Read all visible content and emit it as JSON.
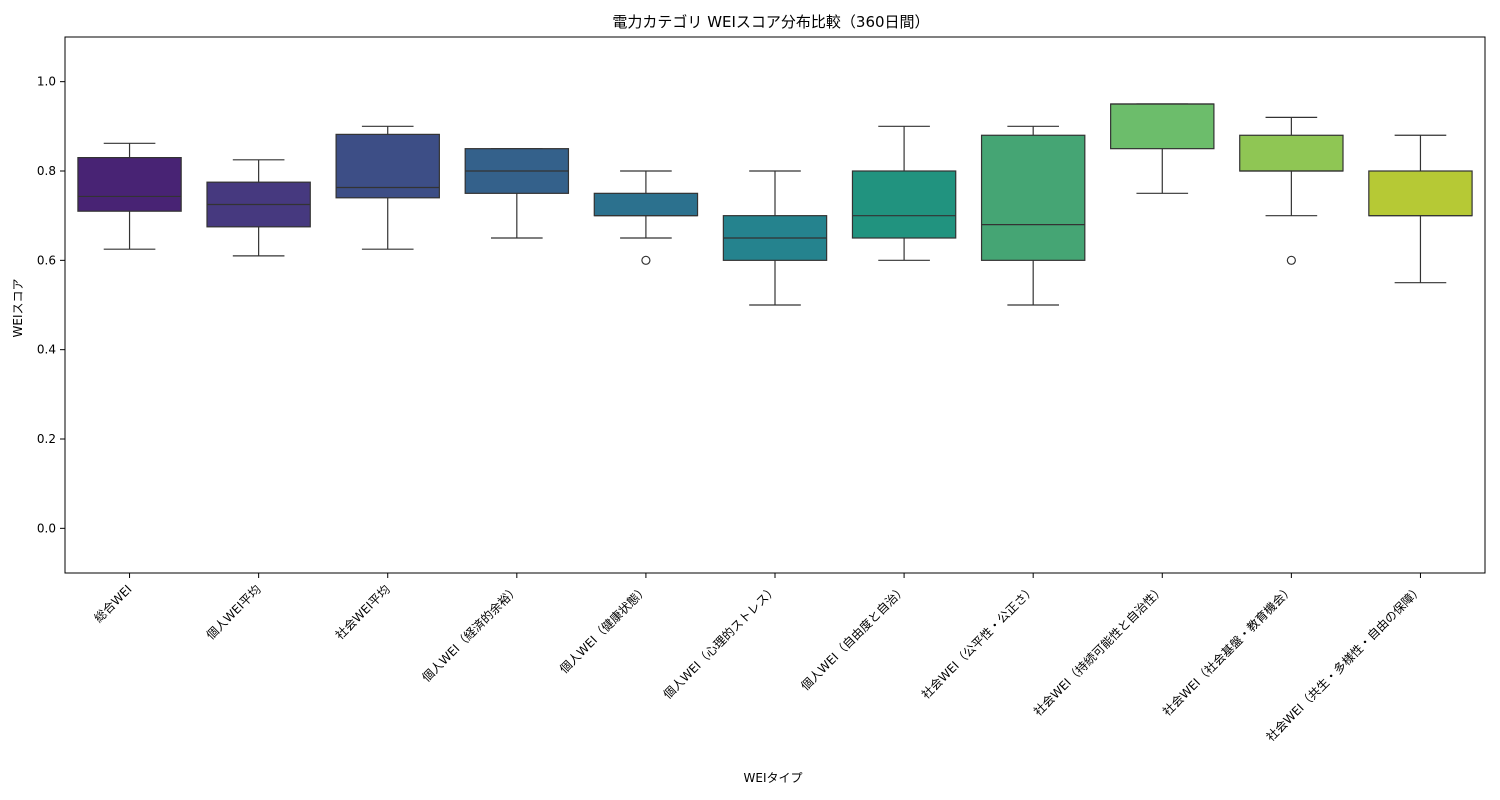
{
  "chart_data": {
    "type": "box",
    "title": "電力カテゴリ WEIスコア分布比較（360日間）",
    "xlabel": "WEIタイプ",
    "ylabel": "WEIスコア",
    "ylim": [
      -0.1,
      1.1
    ],
    "yticks": [
      0.0,
      0.2,
      0.4,
      0.6,
      0.8,
      1.0
    ],
    "ytick_labels": [
      "0.0",
      "0.2",
      "0.4",
      "0.6",
      "0.8",
      "1.0"
    ],
    "grid": false,
    "legend": "none",
    "categories": [
      "総合WEI",
      "個人WEI平均",
      "社会WEI平均",
      "個人WEI（経済的余裕）",
      "個人WEI（健康状態）",
      "個人WEI（心理的ストレス）",
      "個人WEI（自由度と自治）",
      "社会WEI（公平性・公正さ）",
      "社会WEI（持続可能性と自治性）",
      "社会WEI（社会基盤・教育機会）",
      "社会WEI（共生・多様性・自由の保障）"
    ],
    "boxes": [
      {
        "whisker_low": 0.625,
        "q1": 0.71,
        "median": 0.743,
        "q3": 0.83,
        "whisker_high": 0.862,
        "outliers": [],
        "color": "#482374"
      },
      {
        "whisker_low": 0.61,
        "q1": 0.675,
        "median": 0.725,
        "q3": 0.775,
        "whisker_high": 0.825,
        "outliers": [],
        "color": "#46397f"
      },
      {
        "whisker_low": 0.625,
        "q1": 0.74,
        "median": 0.763,
        "q3": 0.882,
        "whisker_high": 0.9,
        "outliers": [],
        "color": "#3d4e86"
      },
      {
        "whisker_low": 0.65,
        "q1": 0.75,
        "median": 0.8,
        "q3": 0.85,
        "whisker_high": 0.85,
        "outliers": [],
        "color": "#34618b"
      },
      {
        "whisker_low": 0.65,
        "q1": 0.7,
        "median": 0.7,
        "q3": 0.75,
        "whisker_high": 0.8,
        "outliers": [
          0.6
        ],
        "color": "#2c718e"
      },
      {
        "whisker_low": 0.5,
        "q1": 0.6,
        "median": 0.65,
        "q3": 0.7,
        "whisker_high": 0.8,
        "outliers": [],
        "color": "#25838e"
      },
      {
        "whisker_low": 0.6,
        "q1": 0.65,
        "median": 0.7,
        "q3": 0.8,
        "whisker_high": 0.9,
        "outliers": [],
        "color": "#21937f"
      },
      {
        "whisker_low": 0.5,
        "q1": 0.6,
        "median": 0.68,
        "q3": 0.88,
        "whisker_high": 0.9,
        "outliers": [],
        "color": "#45a574"
      },
      {
        "whisker_low": 0.75,
        "q1": 0.85,
        "median": 0.95,
        "q3": 0.95,
        "whisker_high": 0.95,
        "outliers": [],
        "color": "#6cbd6b"
      },
      {
        "whisker_low": 0.7,
        "q1": 0.8,
        "median": 0.8,
        "q3": 0.88,
        "whisker_high": 0.92,
        "outliers": [
          0.6
        ],
        "color": "#8fc654"
      },
      {
        "whisker_low": 0.55,
        "q1": 0.7,
        "median": 0.7,
        "q3": 0.8,
        "whisker_high": 0.88,
        "outliers": [],
        "color": "#b6c935"
      }
    ]
  }
}
